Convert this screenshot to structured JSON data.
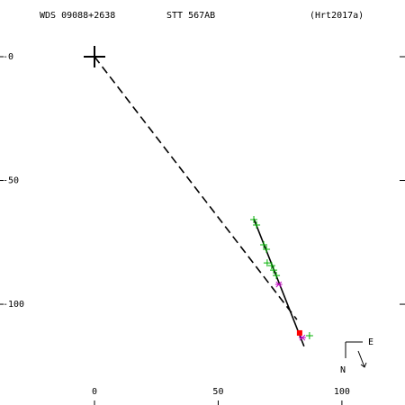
{
  "chart_data": {
    "type": "orbit",
    "header": [
      "WDS 09088+2638",
      "STT 567AB",
      "(Hrt2017a)"
    ],
    "xlim": [
      -38.2,
      125.5
    ],
    "ylim": [
      -140.7,
      22.9
    ],
    "xticks": [
      0,
      50,
      100
    ],
    "yticks": [
      {
        "value": 0,
        "label": "-0"
      },
      -50,
      -100
    ],
    "compass": [
      "E",
      "N"
    ],
    "primary": {
      "x": 0,
      "y": 0,
      "color": "#000000"
    },
    "series": [
      {
        "style": "dashed",
        "color": "#000000",
        "x": [
          0,
          81.8
        ],
        "values": [
          0,
          -106.2
        ]
      },
      {
        "style": "solid",
        "color": "#000000",
        "x": [
          64.4,
          84.7
        ],
        "values": [
          -65.5,
          -117
        ]
      },
      {
        "style": "plus",
        "color": "#00b000",
        "x": [
          64.4,
          65.5,
          68.4,
          69.5,
          69.8,
          71.6,
          72.4,
          73.5,
          86.9
        ],
        "values": [
          -65.8,
          -68,
          -76,
          -77.8,
          -83.3,
          -84.4,
          -86.2,
          -88.4,
          -112.7
        ]
      },
      {
        "style": "star",
        "color": "#c000c0",
        "x": [
          74.5,
          84
        ],
        "values": [
          -92,
          -113.5
        ]
      },
      {
        "style": "square",
        "color": "#ff0000",
        "x": [
          82.9
        ],
        "values": [
          -111.6
        ]
      }
    ]
  }
}
